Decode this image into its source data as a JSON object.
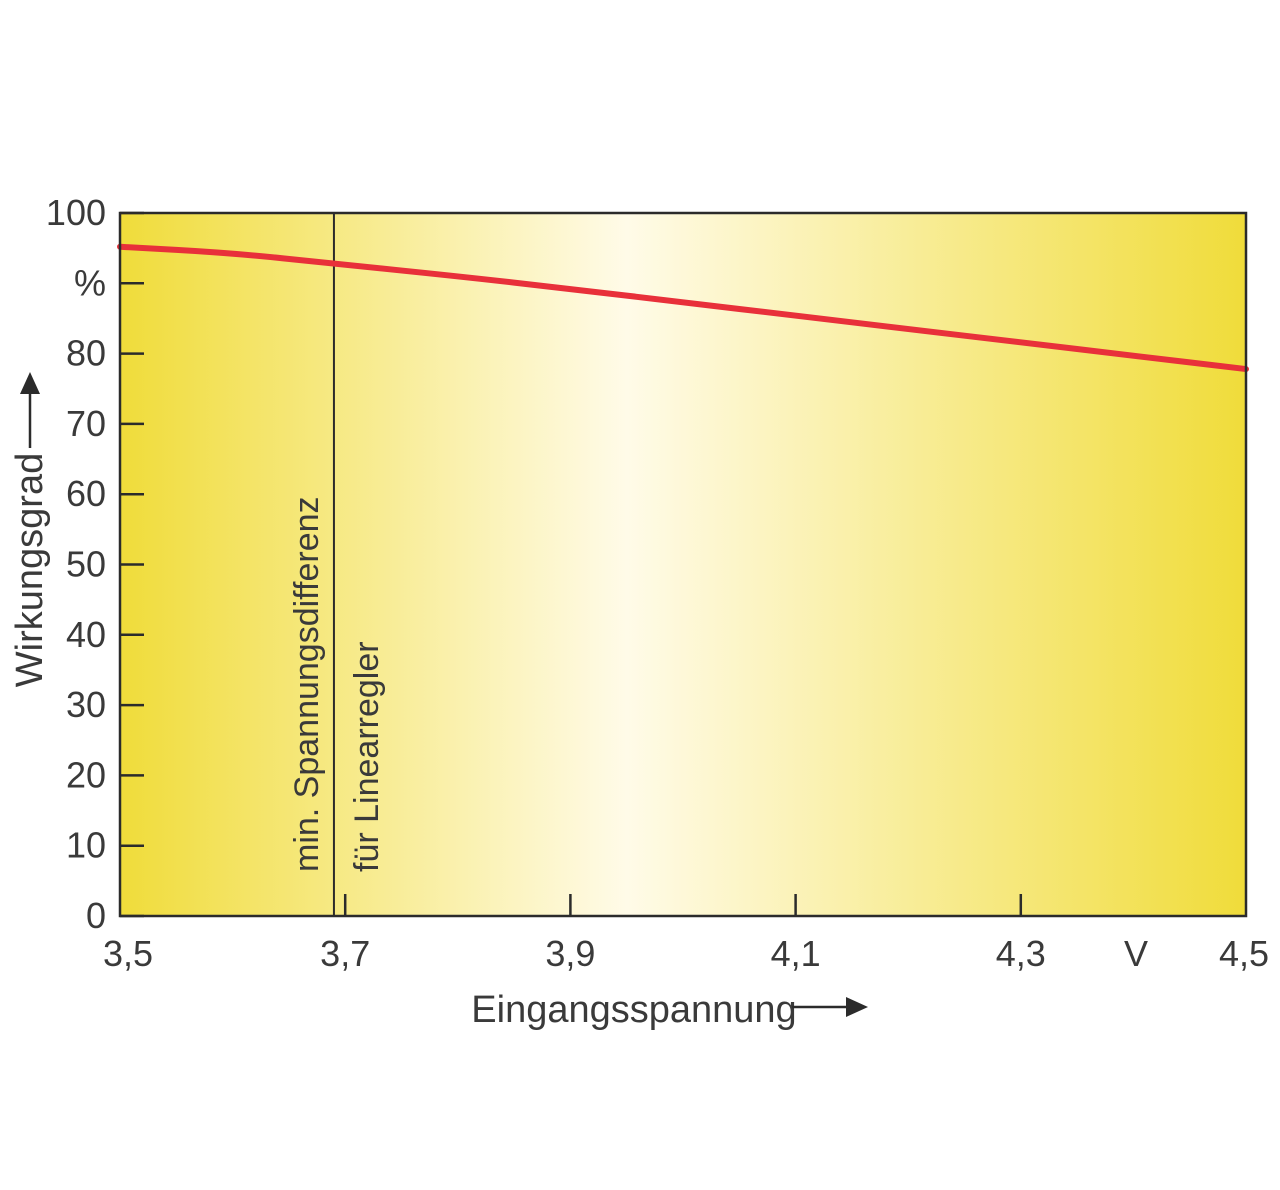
{
  "chart_data": {
    "type": "line",
    "xlabel": "Eingangsspannung",
    "ylabel": "Wirkungsgrad",
    "x_unit": "V",
    "y_unit": "%",
    "xlim": [
      3.5,
      4.5
    ],
    "ylim": [
      0,
      100
    ],
    "x_ticks": [
      {
        "value": 3.5,
        "label": "3,5"
      },
      {
        "value": 3.7,
        "label": "3,7"
      },
      {
        "value": 3.9,
        "label": "3,9"
      },
      {
        "value": 4.1,
        "label": "4,1"
      },
      {
        "value": 4.3,
        "label": "4,3"
      },
      {
        "value": 4.5,
        "label": "4,5"
      }
    ],
    "y_ticks": [
      {
        "value": 0,
        "label": "0"
      },
      {
        "value": 10,
        "label": "10"
      },
      {
        "value": 20,
        "label": "20"
      },
      {
        "value": 30,
        "label": "30"
      },
      {
        "value": 40,
        "label": "40"
      },
      {
        "value": 50,
        "label": "50"
      },
      {
        "value": 60,
        "label": "60"
      },
      {
        "value": 70,
        "label": "70"
      },
      {
        "value": 80,
        "label": "80"
      },
      {
        "value": 90,
        "label": "%"
      },
      {
        "value": 100,
        "label": "100"
      }
    ],
    "series": [
      {
        "color": "#e8303a",
        "x": [
          3.5,
          3.6,
          3.69,
          3.8,
          3.9,
          4.0,
          4.1,
          4.2,
          4.3,
          4.4,
          4.5
        ],
        "y": [
          95.2,
          94.3,
          92.8,
          91.0,
          89.2,
          87.3,
          85.4,
          83.5,
          81.6,
          79.7,
          77.8
        ]
      }
    ],
    "vline": {
      "x": 3.69,
      "label_line1": "min. Spannungsdifferenz",
      "label_line2": "für Linearregler"
    },
    "grid": false,
    "background": {
      "edge": "#f0dc3a",
      "center": "#fffbe8"
    }
  }
}
